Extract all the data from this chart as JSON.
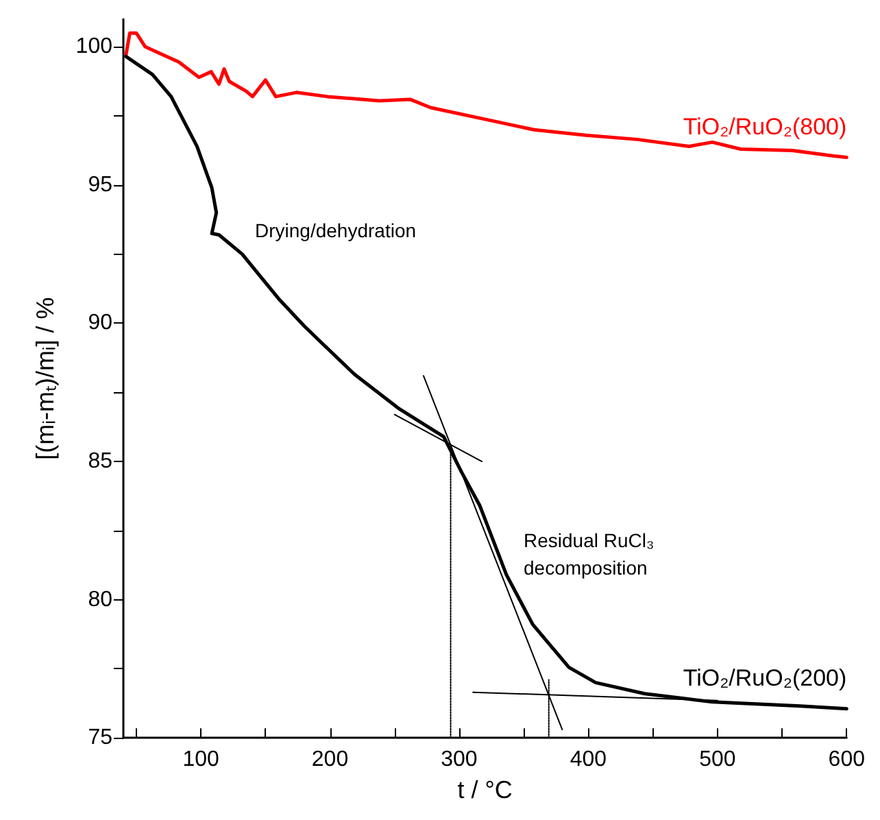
{
  "chart_data": {
    "type": "line",
    "xlabel": "t / °C",
    "ylabel": "[(mᵢ-mₜ)/mᵢ] / %",
    "xlim": [
      40,
      600
    ],
    "ylim": [
      75,
      101
    ],
    "xticks": [
      {
        "value": 50,
        "label": null
      },
      100,
      {
        "value": 150,
        "label": null
      },
      200,
      {
        "value": 250,
        "label": null
      },
      300,
      {
        "value": 350,
        "label": null
      },
      400,
      {
        "value": 450,
        "label": null
      },
      500,
      {
        "value": 550,
        "label": null
      },
      600
    ],
    "yticks": [
      75,
      {
        "value": 77.5,
        "label": null
      },
      80,
      {
        "value": 82.5,
        "label": null
      },
      85,
      {
        "value": 87.5,
        "label": null
      },
      90,
      {
        "value": 92.5,
        "label": null
      },
      95,
      {
        "value": 97.5,
        "label": null
      },
      100
    ],
    "grid": false,
    "legend": false,
    "series": [
      {
        "name": "TiO₂/RuO₂(800)",
        "color": "#ff0000",
        "x": [
          42,
          45,
          50,
          57,
          83,
          98.5,
          108,
          114,
          118,
          122,
          135,
          140,
          150,
          158,
          174,
          198,
          238,
          262,
          278,
          318,
          358,
          398,
          438,
          478,
          496,
          518,
          558,
          590,
          600
        ],
        "values": [
          99.7,
          100.5,
          100.5,
          100,
          99.45,
          98.9,
          99.1,
          98.65,
          99.2,
          98.75,
          98.4,
          98.2,
          98.8,
          98.2,
          98.35,
          98.2,
          98.05,
          98.1,
          97.8,
          97.4,
          97.0,
          96.8,
          96.65,
          96.4,
          96.55,
          96.3,
          96.25,
          96.05,
          96.0
        ]
      },
      {
        "name": "TiO₂/RuO₂(200)",
        "color": "#000000",
        "x": [
          42,
          62.5,
          77,
          97,
          108.5,
          112,
          108.5,
          114,
          132,
          142.5,
          160,
          180,
          200,
          219,
          253.7,
          288,
          302,
          316,
          336.6,
          357,
          385,
          405.7,
          443.6,
          496,
          564,
          600
        ],
        "values": [
          99.65,
          99.0,
          98.2,
          96.4,
          94.9,
          94.0,
          93.25,
          93.2,
          92.5,
          91.9,
          90.9,
          89.9,
          89.0,
          88.15,
          86.9,
          85.9,
          84.6,
          83.4,
          80.9,
          79.1,
          77.55,
          77.0,
          76.6,
          76.3,
          76.15,
          76.05
        ]
      },
      {
        "color": "#000000",
        "x": [
          272.4,
          379.8
        ],
        "values": [
          88.1,
          75.3
        ]
      },
      {
        "color": "#000000",
        "x": [
          250,
          317.6
        ],
        "values": [
          86.7,
          85.0
        ]
      },
      {
        "color": "#000000",
        "x": [
          310.7,
          500
        ],
        "values": [
          76.65,
          76.35
        ]
      },
      {
        "color": "#000000",
        "line_style": "dotted",
        "x": [
          293.4,
          293.4
        ],
        "values": [
          75,
          85.5
        ]
      },
      {
        "color": "#000000",
        "line_style": "dotted",
        "x": [
          369.4,
          369.4
        ],
        "values": [
          75,
          77.1
        ]
      }
    ],
    "annotations": [
      "Drying/dehydration",
      "Residual RuCl₃\ndecomposition"
    ]
  }
}
